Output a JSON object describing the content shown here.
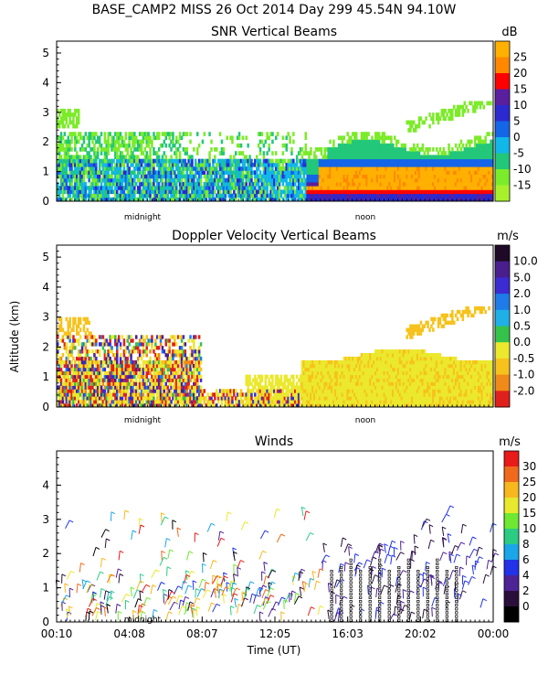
{
  "header": {
    "title": "BASE_CAMP2 MISS  26 Oct 2014 Day 299 45.54N  94.10W"
  },
  "chart_data": [
    {
      "type": "heatmap",
      "title": "SNR Vertical Beams",
      "ylabel": "",
      "ylim": [
        0,
        5.4
      ],
      "yticks": [
        "0",
        "1",
        "2",
        "3",
        "4",
        "5"
      ],
      "xmarkers": [
        "midnight",
        "noon"
      ],
      "colorbar": {
        "unit": "dB",
        "labels": [
          "25",
          "20",
          "15",
          "10",
          "5",
          "0",
          "-5",
          "-10",
          "-15"
        ],
        "colors": [
          "#FFB000",
          "#FF8800",
          "#FF0000",
          "#5A1F9E",
          "#2A2AD0",
          "#1565E8",
          "#11B7E8",
          "#22C77A",
          "#7CEB2A",
          "#A8F02C"
        ]
      },
      "regions": [
        {
          "name": "noise speckle",
          "level": "-15 to -10"
        },
        {
          "name": "boundary layer",
          "level": "20 to 25",
          "extent": "0.3 to 1.1 km, after ~15 UT"
        }
      ]
    },
    {
      "type": "heatmap",
      "title": "Doppler Velocity Vertical Beams",
      "ylabel": "Altitude (km)",
      "ylim": [
        0,
        5.4
      ],
      "yticks": [
        "0",
        "1",
        "2",
        "3",
        "4",
        "5"
      ],
      "xmarkers": [
        "midnight",
        "noon"
      ],
      "colorbar": {
        "unit": "m/s",
        "labels": [
          "10.0",
          "5.0",
          "2.0",
          "1.0",
          "0.5",
          "0.0",
          "-0.5",
          "-1.0",
          "-2.0"
        ],
        "colors": [
          "#1E0A26",
          "#4A1E8E",
          "#3B2BD1",
          "#1E7BE8",
          "#1FB0E8",
          "#35C24A",
          "#EBE82E",
          "#F7C21C",
          "#F08A18",
          "#E0201C"
        ]
      }
    },
    {
      "type": "scatter",
      "title": "Winds",
      "ylabel": "",
      "xlabel": "Time (UT)",
      "ylim": [
        0,
        5
      ],
      "yticks": [
        "0",
        "1",
        "2",
        "3",
        "4"
      ],
      "xticks": [
        "00:10",
        "04:08",
        "08:07",
        "12:05",
        "16:03",
        "20:02",
        "00:00"
      ],
      "xmarkers": [
        "midnight"
      ],
      "colorbar": {
        "unit": "m/s",
        "labels": [
          "30",
          "25",
          "20",
          "15",
          "10",
          "8",
          "6",
          "4",
          "2",
          "0"
        ],
        "colors": [
          "#E81A1A",
          "#F06A1E",
          "#F7B81E",
          "#E8E82E",
          "#6EE832",
          "#2CCB84",
          "#1AA6E8",
          "#2233E8",
          "#4D2396",
          "#2A0F3A",
          "#000000"
        ]
      }
    }
  ]
}
